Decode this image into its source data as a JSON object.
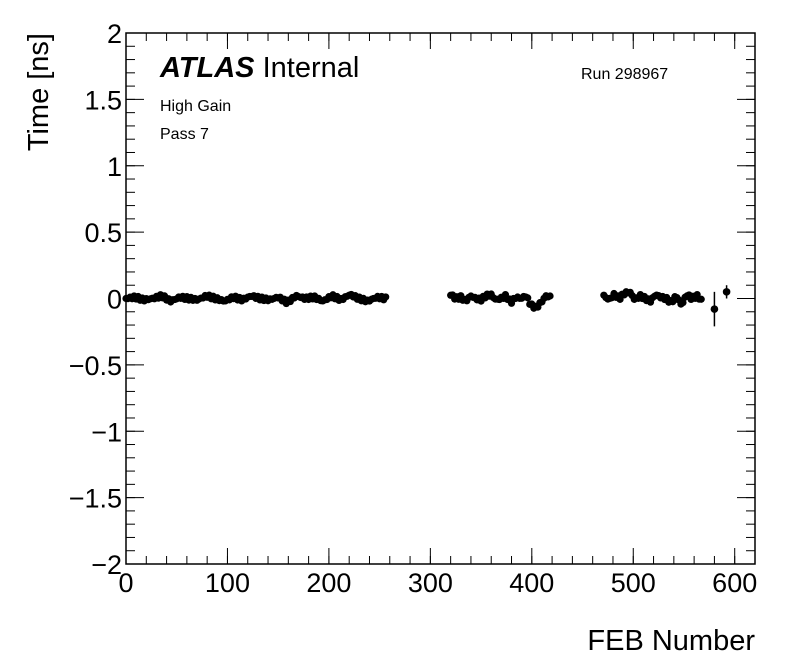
{
  "chart_data": {
    "type": "scatter",
    "xlabel": "FEB Number",
    "ylabel": "Time [ns]",
    "xlim": [
      0,
      620
    ],
    "ylim": [
      -2,
      2
    ],
    "xticks": [
      0,
      100,
      200,
      300,
      400,
      500,
      600
    ],
    "xtick_labels": [
      "0",
      "100",
      "200",
      "300",
      "400",
      "500",
      "600"
    ],
    "yticks": [
      -2,
      -1.5,
      -1,
      -0.5,
      0,
      0.5,
      1,
      1.5,
      2
    ],
    "ytick_labels": [
      "−2",
      "−1.5",
      "−1",
      "−0.5",
      "0",
      "0.5",
      "1",
      "1.5",
      "2"
    ],
    "grid": false,
    "marker_color": "#000000",
    "segments": [
      {
        "x_start": 0,
        "x_end": 256,
        "y_values": [
          0.0,
          0.01,
          -0.01,
          0.0,
          0.02,
          -0.02,
          0.01,
          0.0,
          -0.01,
          0.02,
          0.0,
          -0.02,
          0.01,
          -0.01,
          0.02,
          0.0,
          -0.01,
          0.01,
          -0.03,
          0.02,
          0.0,
          0.01,
          -0.02,
          0.02,
          -0.01,
          0.03,
          0.0,
          -0.02,
          0.01,
          0.0
        ]
      },
      {
        "x_start": 320,
        "x_end": 419,
        "y_values": [
          0.03,
          0.0,
          0.01,
          -0.02,
          0.02,
          0.0,
          -0.01,
          0.02,
          0.03,
          -0.01,
          0.0,
          0.02,
          -0.03,
          0.01,
          0.0,
          0.02,
          -0.05,
          -0.07,
          -0.03,
          0.02,
          0.01
        ]
      },
      {
        "x_start": 471,
        "x_end": 568,
        "y_values": [
          0.02,
          -0.01,
          0.03,
          0.0,
          0.04,
          0.05,
          -0.01,
          0.02,
          0.0,
          -0.02,
          0.03,
          0.01,
          0.0,
          -0.03,
          0.02,
          -0.05,
          0.03,
          0.0,
          0.02,
          -0.02
        ]
      }
    ],
    "error_points": [
      {
        "x": 580,
        "y": -0.08,
        "err": 0.13
      },
      {
        "x": 592,
        "y": 0.05,
        "err": 0.05
      }
    ]
  },
  "annotations": {
    "atlas": "ATLAS",
    "internal": "Internal",
    "gain": "High Gain",
    "pass": "Pass 7",
    "run": "Run 298967"
  }
}
